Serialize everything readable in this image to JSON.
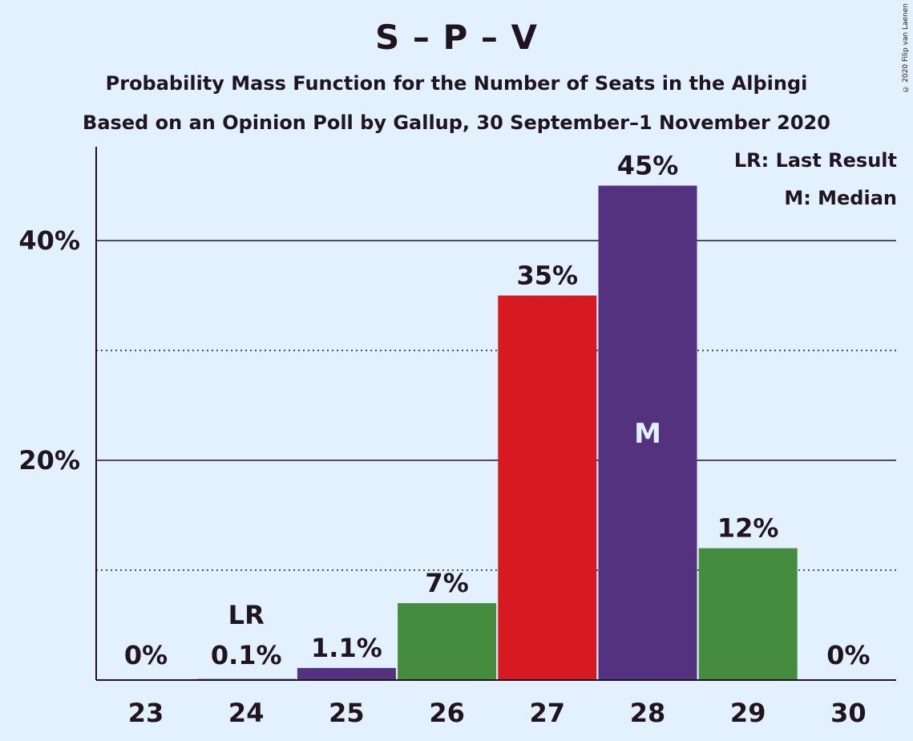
{
  "chart_data": {
    "type": "bar",
    "title": "S – P – V",
    "subtitle": "Probability Mass Function for the Number of Seats in the Alþingi",
    "subtitle2": "Based on an Opinion Poll by Gallup, 30 September–1 November 2020",
    "categories": [
      "23",
      "24",
      "25",
      "26",
      "27",
      "28",
      "29",
      "30"
    ],
    "values": [
      0,
      0.1,
      1.1,
      7,
      35,
      45,
      12,
      0
    ],
    "labels": [
      "0%",
      "0.1%",
      "1.1%",
      "7%",
      "35%",
      "45%",
      "12%",
      "0%"
    ],
    "bar_colors": [
      "#553280",
      "#553280",
      "#553280",
      "#468c3f",
      "#d71921",
      "#553280",
      "#468c3f",
      "#468c3f"
    ],
    "ylim": [
      0,
      48
    ],
    "yticks_major": [
      20,
      40
    ],
    "ytick_labels": [
      "20%",
      "40%"
    ],
    "yticks_minor": [
      10,
      30
    ],
    "last_result_category": "24",
    "last_result_marker": "LR",
    "median_category": "28",
    "median_marker": "M",
    "xlabel": "",
    "ylabel": ""
  },
  "legend": {
    "last_result": "LR: Last Result",
    "median": "M: Median"
  },
  "copyright": "© 2020 Filip van Laenen"
}
